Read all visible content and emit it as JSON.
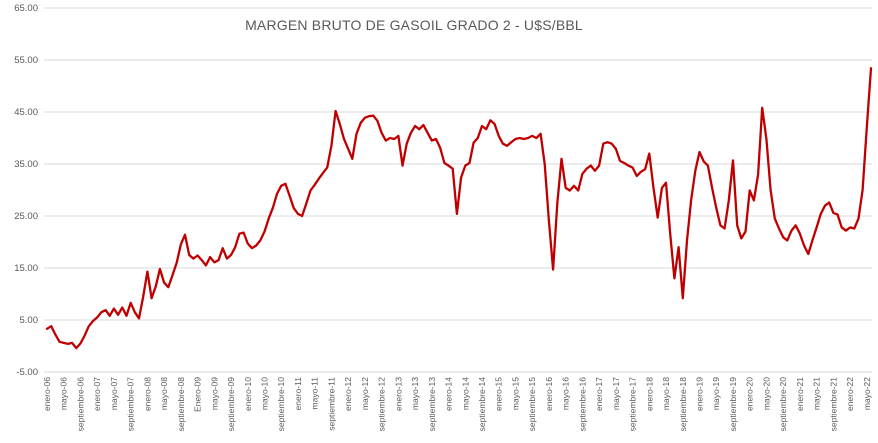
{
  "chart_data": {
    "type": "line",
    "title": "MARGEN BRUTO DE GASOIL GRADO 2 - U$S/BBL",
    "frequency": "monthly",
    "x_start": "enero-06",
    "x_end": "junio-22",
    "x_tick_every": 4,
    "x_tick_labels": [
      "enero-06",
      "mayo-06",
      "septiembre-06",
      "enero-07",
      "mayo-07",
      "septiembre-07",
      "enero-08",
      "mayo-08",
      "septiembre-08",
      "Enero-09",
      "mayo-09",
      "septiembre-09",
      "enero-10",
      "mayo-10",
      "septiembre-10",
      "enero-11",
      "mayo-11",
      "septiembre-11",
      "enero-12",
      "mayo-12",
      "septiembre-12",
      "enero-13",
      "mayo-13",
      "septiembre-13",
      "enero-14",
      "mayo-14",
      "septiembre-14",
      "enero-15",
      "mayo-15",
      "septiembre-15",
      "enero-16",
      "mayo-16",
      "septiembre-16",
      "enero-17",
      "mayo-17",
      "septiembre-17",
      "enero-18",
      "mayo-18",
      "septiembre-18",
      "enero-19",
      "mayo-19",
      "septiembre-19",
      "enero-20",
      "mayo-20",
      "septiembre-20",
      "enero-21",
      "mayo-21",
      "septiembre-21",
      "enero-22",
      "mayo-22"
    ],
    "y_ticks": [
      -5,
      5,
      15,
      25,
      35,
      45,
      55,
      65
    ],
    "ylim": [
      -5,
      65
    ],
    "grid": "horizontal",
    "legend": "none",
    "series": [
      {
        "name": "Margen bruto de gasoil grado 2 (U$S/BBL)",
        "color": "#C00000",
        "values": [
          3.3,
          3.8,
          2.2,
          0.8,
          0.6,
          0.4,
          0.6,
          -0.4,
          0.5,
          2.0,
          3.8,
          4.8,
          5.5,
          6.5,
          6.9,
          5.8,
          7.2,
          6.0,
          7.4,
          5.8,
          8.3,
          6.5,
          5.3,
          9.5,
          14.3,
          9.2,
          11.5,
          14.8,
          12.2,
          11.3,
          13.6,
          16.0,
          19.5,
          21.4,
          17.5,
          16.8,
          17.4,
          16.5,
          15.5,
          17.1,
          16.1,
          16.5,
          18.8,
          16.8,
          17.5,
          19.0,
          21.6,
          21.8,
          19.7,
          18.8,
          19.3,
          20.3,
          22.0,
          24.5,
          26.6,
          29.3,
          30.8,
          31.2,
          28.9,
          26.5,
          25.4,
          25.0,
          27.4,
          29.9,
          31.0,
          32.2,
          33.3,
          34.3,
          38.5,
          45.2,
          42.7,
          39.8,
          37.9,
          36.0,
          40.8,
          42.9,
          43.9,
          44.2,
          44.3,
          43.3,
          41.0,
          39.5,
          40.0,
          39.8,
          40.4,
          34.7,
          38.9,
          41.0,
          42.3,
          41.7,
          42.5,
          41.0,
          39.5,
          39.8,
          38.1,
          35.2,
          34.7,
          34.1,
          25.4,
          32.4,
          34.7,
          35.2,
          39.1,
          40.0,
          42.3,
          41.7,
          43.4,
          42.7,
          40.4,
          38.9,
          38.5,
          39.2,
          39.8,
          40.0,
          39.8,
          40.0,
          40.4,
          40.0,
          40.8,
          35.0,
          24.1,
          14.7,
          27.4,
          36.0,
          30.4,
          29.9,
          30.8,
          29.9,
          33.1,
          34.1,
          34.7,
          33.7,
          34.7,
          38.9,
          39.2,
          38.9,
          37.9,
          35.6,
          35.2,
          34.7,
          34.3,
          32.7,
          33.5,
          34.0,
          37.0,
          30.4,
          24.7,
          30.4,
          31.4,
          21.6,
          13.0,
          19.0,
          9.2,
          20.3,
          28.0,
          33.7,
          37.3,
          35.5,
          34.7,
          30.4,
          26.6,
          23.2,
          22.6,
          28.0,
          35.7,
          23.2,
          20.7,
          22.0,
          29.9,
          28.0,
          33.0,
          45.8,
          39.8,
          30.0,
          24.5,
          22.6,
          20.9,
          20.3,
          22.2,
          23.2,
          21.6,
          19.3,
          17.7,
          20.3,
          22.8,
          25.4,
          27.0,
          27.6,
          25.6,
          25.3,
          22.8,
          22.2,
          22.8,
          22.6,
          24.5,
          30.0,
          42.0,
          53.4
        ]
      }
    ],
    "colors": {
      "line": "#C00000",
      "grid": "#D9D9D9",
      "text": "#595959",
      "background": "#FFFFFF"
    }
  }
}
